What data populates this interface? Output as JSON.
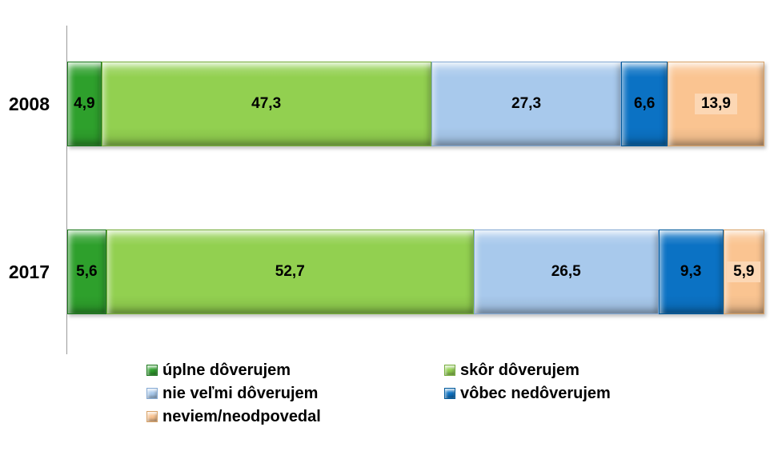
{
  "chart_data": {
    "type": "bar",
    "orientation": "horizontal",
    "stacked": true,
    "unit": "%",
    "title": "",
    "categories": [
      "2008",
      "2017"
    ],
    "series": [
      {
        "name": "úplne dôverujem",
        "values": [
          4.9,
          5.6
        ],
        "labels": [
          "4,9",
          "5,6"
        ],
        "color": "#2EA02C",
        "edge_color": "#1E7A1E"
      },
      {
        "name": "skôr dôverujem",
        "values": [
          47.3,
          52.7
        ],
        "labels": [
          "47,3",
          "52,7"
        ],
        "color": "#92D050",
        "edge_color": "#76AE3C"
      },
      {
        "name": "nie veľmi dôverujem",
        "values": [
          27.3,
          26.5
        ],
        "labels": [
          "27,3",
          "26,5"
        ],
        "color": "#A8C9EC",
        "edge_color": "#84A9D4"
      },
      {
        "name": "vôbec nedôverujem",
        "values": [
          6.6,
          9.3
        ],
        "labels": [
          "6,6",
          "9,3"
        ],
        "color": "#0B72C4",
        "edge_color": "#005A9C"
      },
      {
        "name": "neviem/neodpovedal",
        "values": [
          13.9,
          5.9
        ],
        "labels": [
          "13,9",
          "5,9"
        ],
        "color": "#FAC491",
        "edge_color": "#D9A368",
        "label_box": true,
        "label_box_color": "#FCD7B4"
      }
    ],
    "xlim": [
      0,
      100
    ],
    "grid": false,
    "legend_position": "bottom",
    "axis_color": "#9A9A9A",
    "background_color": "#FFFFFF",
    "label_color": "#000000"
  }
}
